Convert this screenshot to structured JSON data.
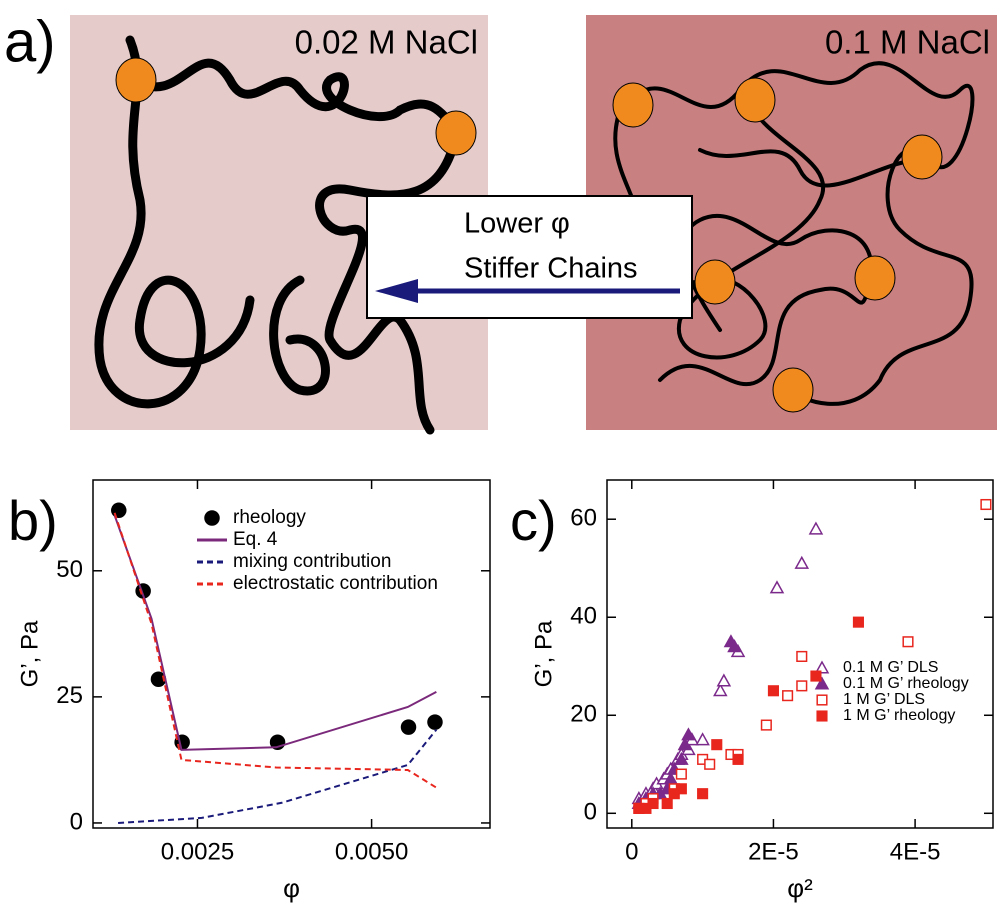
{
  "figure_label": "a)",
  "diagram": {
    "left_label": "0.02 M NaCl",
    "right_label": "0.1 M NaCl",
    "arrow_line1": "Lower φ",
    "arrow_line2": "Stiffer Chains"
  },
  "chart_data": [
    {
      "type": "line",
      "label": "b)",
      "x_label": "φ",
      "y_label": "G’, Pa",
      "xlim": [
        0.001,
        0.0067
      ],
      "ylim": [
        -1,
        68
      ],
      "xticks": [
        0.0025,
        {
          "value": 0.005,
          "label": "0.0050"
        }
      ],
      "yticks": [
        0,
        25,
        50
      ],
      "series": [
        {
          "name": "rheology",
          "kind": "scatter",
          "color": "#000000",
          "x": [
            0.00137,
            0.00172,
            0.00194,
            0.00228,
            0.00365,
            0.00553,
            0.00591
          ],
          "values": [
            62,
            46,
            28.5,
            16,
            16,
            19,
            20
          ]
        },
        {
          "name": "Eq. 4",
          "kind": "line",
          "color": "#7b2a7b",
          "dash": false,
          "x": [
            0.00131,
            0.00184,
            0.00227,
            0.00363,
            0.00552,
            0.00593
          ],
          "values": [
            61,
            40.5,
            14.5,
            15,
            23,
            26
          ]
        },
        {
          "name": "mixing contribution",
          "kind": "line",
          "color": "#1a1a7a",
          "dash": true,
          "x": [
            0.00136,
            0.00256,
            0.00371,
            0.00552,
            0.00593
          ],
          "values": [
            0,
            1,
            4,
            11.5,
            18.5
          ]
        },
        {
          "name": "electrostatic contribution",
          "kind": "line",
          "color": "#e8261e",
          "dash": true,
          "x": [
            0.00131,
            0.00184,
            0.00227,
            0.00363,
            0.00552,
            0.00593
          ],
          "values": [
            61.5,
            39.5,
            12.5,
            11,
            10.5,
            7
          ]
        }
      ]
    },
    {
      "type": "scatter",
      "label": "c)",
      "x_label": "φ²",
      "y_label": "G’, Pa",
      "xlim": [
        -3.5e-06,
        5.1e-05
      ],
      "ylim": [
        -3,
        68
      ],
      "xticks": [
        0,
        {
          "value": 2e-05,
          "label": "2E-5"
        },
        {
          "value": 4e-05,
          "label": "4E-5"
        }
      ],
      "yticks": [
        0,
        20,
        40,
        60
      ],
      "series": [
        {
          "name": "0.1 M G’ DLS",
          "marker": "triangle",
          "filled": false,
          "color": "#7b2a8b",
          "x": [
            1e-06,
            2e-06,
            3e-06,
            3.5e-06,
            4.5e-06,
            5e-06,
            5.5e-06,
            6.5e-06,
            7e-06,
            8e-06,
            8.5e-06,
            1e-05,
            1.25e-05,
            1.3e-05,
            1.5e-05,
            2.05e-05,
            2.4e-05,
            2.6e-05
          ],
          "values": [
            3,
            4,
            5,
            6,
            7,
            8,
            9,
            11,
            12,
            13,
            15,
            15,
            25,
            27,
            33,
            46,
            51,
            58
          ]
        },
        {
          "name": "0.1 M G’ rheology",
          "marker": "triangle",
          "filled": true,
          "color": "#7b2a8b",
          "x": [
            1e-06,
            2e-06,
            3e-06,
            4e-06,
            5e-06,
            5.5e-06,
            6e-06,
            7e-06,
            7.5e-06,
            8e-06,
            1.4e-05,
            1.45e-05
          ],
          "values": [
            2,
            3,
            4,
            4,
            5,
            7,
            9,
            11,
            14,
            16,
            35,
            34
          ]
        },
        {
          "name": "1 M G’ DLS",
          "marker": "square",
          "filled": false,
          "color": "#e8261e",
          "x": [
            1e-06,
            2e-06,
            3e-06,
            6e-06,
            7e-06,
            1e-05,
            1.1e-05,
            1.4e-05,
            1.5e-05,
            1.9e-05,
            2.2e-05,
            2.4e-05,
            2.4e-05,
            3.9e-05,
            5e-05
          ],
          "values": [
            1,
            2,
            3,
            5,
            8,
            11,
            10,
            12,
            12,
            18,
            24,
            26,
            32,
            35,
            63
          ]
        },
        {
          "name": "1 M G’ rheology",
          "marker": "square",
          "filled": true,
          "color": "#e8261e",
          "x": [
            1e-06,
            2e-06,
            3e-06,
            5e-06,
            6e-06,
            7e-06,
            1e-05,
            1.2e-05,
            1.5e-05,
            2e-05,
            2.6e-05,
            3.2e-05
          ],
          "values": [
            1,
            1,
            2,
            2,
            4,
            5,
            4,
            14,
            11,
            25,
            28,
            39
          ]
        }
      ]
    }
  ]
}
